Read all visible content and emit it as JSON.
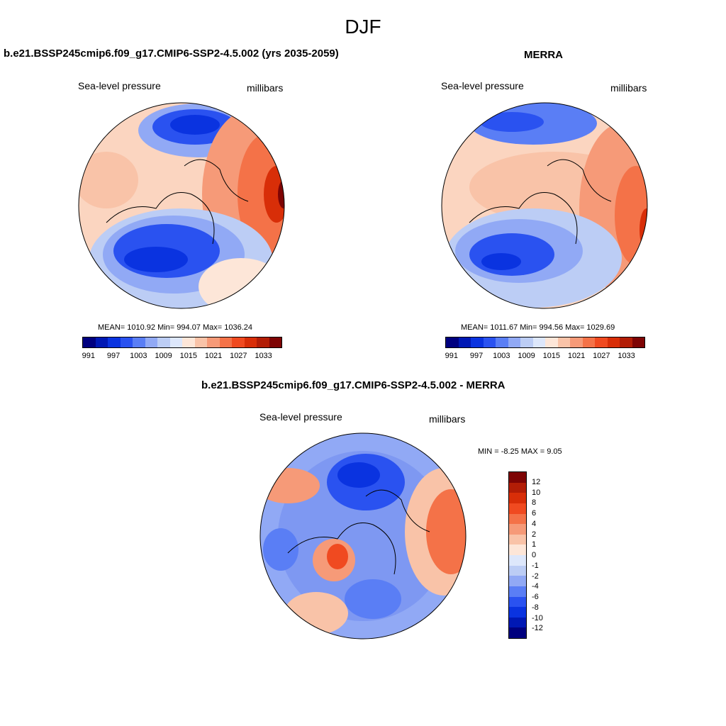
{
  "title": "DJF",
  "panels": {
    "model": {
      "title": "b.e21.BSSP245cmip6.f09_g17.CMIP6-SSP2-4.5.002 (yrs 2035-2059)",
      "field": "Sea-level pressure",
      "units": "millibars",
      "stats": "MEAN= 1010.92  Min= 994.07  Max= 1036.24"
    },
    "obs": {
      "title": "MERRA",
      "field": "Sea-level pressure",
      "units": "millibars",
      "stats": "MEAN= 1011.67  Min= 994.56  Max= 1029.69"
    },
    "diff": {
      "title": "b.e21.BSSP245cmip6.f09_g17.CMIP6-SSP2-4.5.002 - MERRA",
      "field": "Sea-level pressure",
      "units": "millibars",
      "stats": "MIN =  -8.25 MAX =   9.05"
    }
  },
  "colorbar_abs": {
    "colors": [
      "#00007f",
      "#0018b4",
      "#0a33e0",
      "#2a52f0",
      "#5a7ef5",
      "#91a9f5",
      "#bccdf5",
      "#dde7fb",
      "#fde6d8",
      "#f9c3a8",
      "#f69a78",
      "#f47248",
      "#f04a20",
      "#d82e08",
      "#b21d06",
      "#7e0404"
    ],
    "labels": [
      "991",
      "997",
      "1003",
      "1009",
      "1015",
      "1021",
      "1027",
      "1033"
    ]
  },
  "colorbar_diff": {
    "colors": [
      "#7e0404",
      "#b21d06",
      "#d82e08",
      "#f04a20",
      "#f47248",
      "#f69a78",
      "#f9c3a8",
      "#fde6d8",
      "#dde7fb",
      "#bccdf5",
      "#91a9f5",
      "#5a7ef5",
      "#2a52f0",
      "#0a33e0",
      "#0018b4",
      "#00007f"
    ],
    "labels": [
      "12",
      "10",
      "8",
      "6",
      "4",
      "2",
      "1",
      "0",
      "-1",
      "-2",
      "-4",
      "-6",
      "-8",
      "-10",
      "-12"
    ]
  }
}
